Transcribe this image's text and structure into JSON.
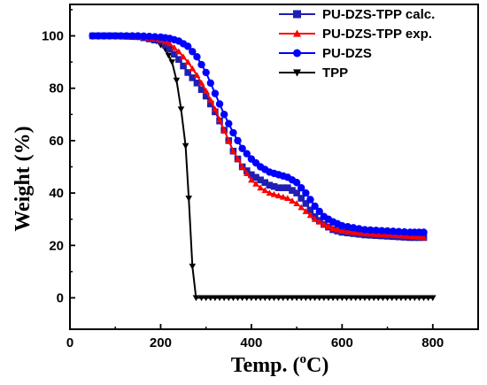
{
  "chart_data": {
    "type": "line",
    "xlabel": "Temp. (oC)",
    "xlabel_parts": {
      "text": "Temp. (",
      "superscript": "o",
      "suffix": "C)"
    },
    "ylabel": "Weight (%)",
    "xlim": [
      0,
      900
    ],
    "ylim": [
      -12,
      112
    ],
    "xticks": [
      0,
      200,
      400,
      600,
      800
    ],
    "yticks": [
      0,
      20,
      40,
      60,
      80,
      100
    ],
    "grid": false,
    "legend_position": "top-right",
    "series": [
      {
        "name": "PU-DZS-TPP calc.",
        "color": "#1f1fb3",
        "marker": "square",
        "x": [
          50,
          100,
          150,
          200,
          220,
          240,
          260,
          280,
          300,
          320,
          340,
          360,
          380,
          400,
          420,
          440,
          460,
          480,
          500,
          520,
          540,
          560,
          580,
          600,
          650,
          700,
          750,
          780
        ],
        "y": [
          100,
          100,
          99.7,
          98,
          95,
          91,
          86,
          82,
          77,
          71,
          64,
          56,
          50,
          47,
          45,
          43,
          42,
          42,
          40,
          36,
          31,
          28,
          26,
          25,
          24,
          23.5,
          23,
          23
        ]
      },
      {
        "name": "PU-DZS-TPP exp.",
        "color": "#ff0000",
        "marker": "triangle-up",
        "x": [
          50,
          100,
          150,
          200,
          220,
          240,
          260,
          280,
          300,
          320,
          340,
          360,
          380,
          400,
          420,
          440,
          460,
          480,
          500,
          520,
          540,
          560,
          580,
          600,
          650,
          700,
          750,
          780
        ],
        "y": [
          100,
          100,
          99.8,
          98.5,
          97,
          94,
          90,
          85,
          79,
          72,
          64,
          56,
          50,
          45,
          42,
          40,
          39,
          38,
          36,
          33,
          30,
          28,
          26.5,
          25.5,
          24.5,
          24,
          23.5,
          23
        ]
      },
      {
        "name": "PU-DZS",
        "color": "#0000ff",
        "marker": "circle",
        "x": [
          50,
          100,
          150,
          200,
          220,
          240,
          260,
          280,
          300,
          320,
          340,
          360,
          380,
          400,
          420,
          440,
          460,
          480,
          500,
          520,
          540,
          560,
          580,
          600,
          650,
          700,
          750,
          780
        ],
        "y": [
          100,
          100,
          100,
          99.5,
          99,
          98,
          96,
          92,
          86,
          78,
          70,
          63,
          57,
          53,
          50,
          48,
          47,
          46,
          44,
          40,
          35,
          31,
          29,
          27.5,
          26,
          25.5,
          25,
          25
        ]
      },
      {
        "name": "TPP",
        "color": "#000000",
        "marker": "triangle-down",
        "x": [
          50,
          100,
          150,
          190,
          210,
          225,
          235,
          245,
          255,
          262,
          270,
          278,
          290,
          350,
          400,
          500,
          600,
          700,
          800
        ],
        "y": [
          100,
          100,
          99.5,
          98,
          95,
          90,
          83,
          72,
          58,
          38,
          12,
          0,
          0,
          0,
          0,
          0,
          0,
          0,
          0
        ]
      }
    ]
  }
}
